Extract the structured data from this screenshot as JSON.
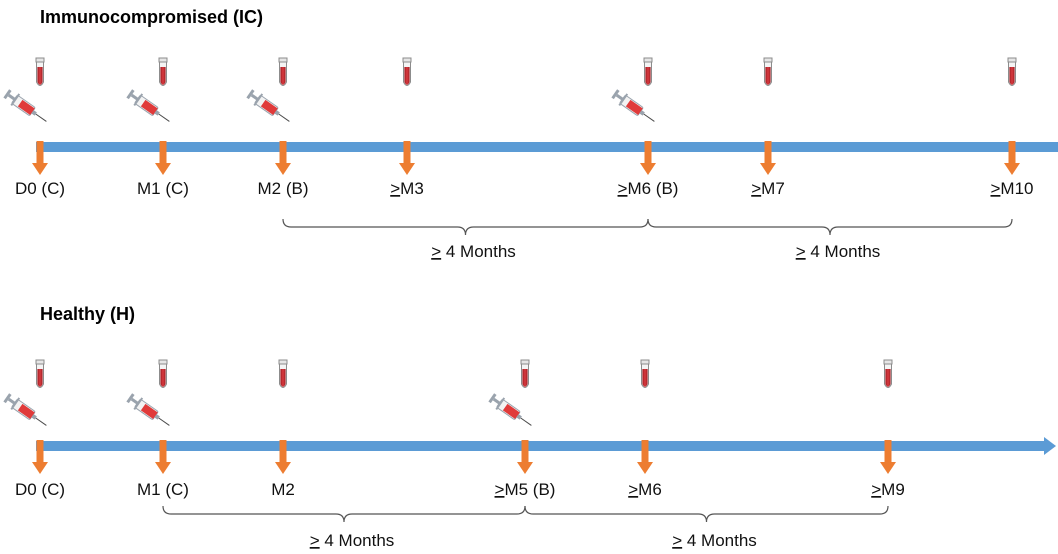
{
  "colors": {
    "timeline": "#5b9bd5",
    "marker": "#ed7d31",
    "blood": "#c0282e",
    "tube_outline": "#8c8c8c",
    "syringe_barrel": "#e03a3a",
    "syringe_metal": "#9aa3ad",
    "bracket": "#555555"
  },
  "icons": {
    "blood_tube": "blood-tube-icon",
    "syringe": "syringe-icon"
  },
  "sections": [
    {
      "id": "ic",
      "title": "Immunocompromised (IC)",
      "timepoints": [
        {
          "id": "d0",
          "ge": "",
          "label": "D0 (C)",
          "blood": true,
          "vaccine": true
        },
        {
          "id": "m1",
          "ge": "",
          "label": "M1 (C)",
          "blood": true,
          "vaccine": true
        },
        {
          "id": "m2",
          "ge": "",
          "label": "M2 (B)",
          "blood": true,
          "vaccine": true
        },
        {
          "id": "m3",
          "ge": ">",
          "label": "M3",
          "blood": true,
          "vaccine": false
        },
        {
          "id": "m6",
          "ge": ">",
          "label": "M6 (B)",
          "blood": true,
          "vaccine": true
        },
        {
          "id": "m7",
          "ge": ">",
          "label": "M7",
          "blood": true,
          "vaccine": false
        },
        {
          "id": "m10",
          "ge": ">",
          "label": "M10",
          "blood": true,
          "vaccine": false
        }
      ],
      "intervals": [
        {
          "from": "m2",
          "to": "m6",
          "ge": ">",
          "label": "4 Months"
        },
        {
          "from": "m6",
          "to": "m10",
          "ge": ">",
          "label": "4 Months"
        }
      ]
    },
    {
      "id": "h",
      "title": "Healthy (H)",
      "timepoints": [
        {
          "id": "d0",
          "ge": "",
          "label": "D0 (C)",
          "blood": true,
          "vaccine": true
        },
        {
          "id": "m1",
          "ge": "",
          "label": "M1 (C)",
          "blood": true,
          "vaccine": true
        },
        {
          "id": "m2",
          "ge": "",
          "label": "M2",
          "blood": true,
          "vaccine": false
        },
        {
          "id": "m5",
          "ge": ">",
          "label": "M5 (B)",
          "blood": true,
          "vaccine": true
        },
        {
          "id": "m6",
          "ge": ">",
          "label": "M6",
          "blood": true,
          "vaccine": false
        },
        {
          "id": "m9",
          "ge": ">",
          "label": "M9",
          "blood": true,
          "vaccine": false
        }
      ],
      "intervals": [
        {
          "from": "m1",
          "to": "m5",
          "ge": ">",
          "label": "4 Months"
        },
        {
          "from": "m5",
          "to": "m9",
          "ge": ">",
          "label": "4 Months"
        }
      ]
    }
  ]
}
